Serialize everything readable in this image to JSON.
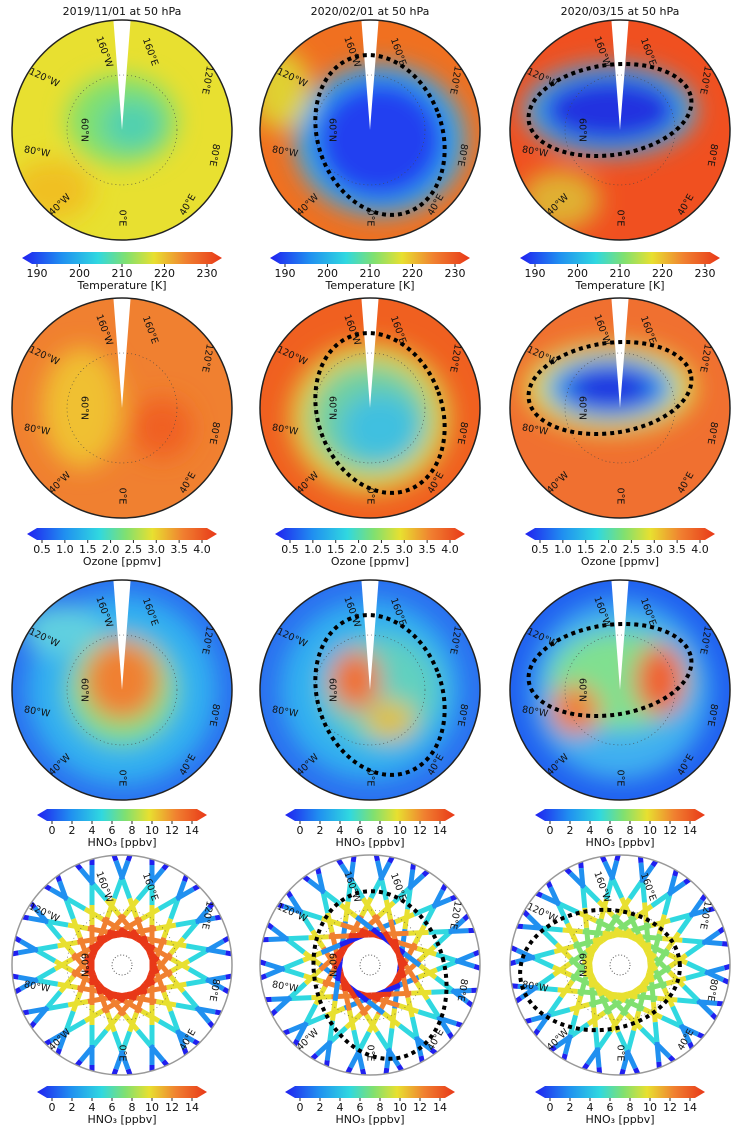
{
  "columns": [
    "2019/11/01 at 50 hPa",
    "2020/02/01 at 50 hPa",
    "2020/03/15 at 50 hPa"
  ],
  "map_labels": [
    "160°W",
    "160°E",
    "120°W",
    "120°E",
    "80°W",
    "80°E",
    "40°W",
    "40°E",
    "0°E",
    "60°N"
  ],
  "rows": [
    {
      "colorbar_ticks": [
        "190",
        "200",
        "210",
        "220",
        "230"
      ],
      "colorbar_label": "Temperature [K]"
    },
    {
      "colorbar_ticks": [
        "0.5",
        "1.0",
        "1.5",
        "2.0",
        "2.5",
        "3.0",
        "3.5",
        "4.0"
      ],
      "colorbar_label": "Ozone [ppmv]"
    },
    {
      "colorbar_ticks": [
        "0",
        "2",
        "4",
        "6",
        "8",
        "10",
        "12",
        "14"
      ],
      "colorbar_label": "HNO₃ [ppbv]"
    },
    {
      "colorbar_ticks": [
        "0",
        "2",
        "4",
        "6",
        "8",
        "10",
        "12",
        "14"
      ],
      "colorbar_label": "HNO₃ [ppbv]"
    }
  ]
}
